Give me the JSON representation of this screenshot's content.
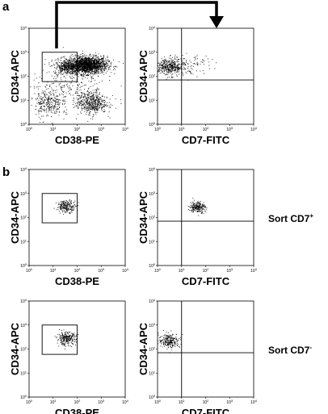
{
  "panel_letters": [
    "a",
    "b"
  ],
  "sort_labels": [
    {
      "text": "Sort CD7",
      "sup": "+"
    },
    {
      "text": "Sort CD7",
      "sup": "-"
    }
  ],
  "colors": {
    "ink": "#000000",
    "background": "#ffffff"
  },
  "chart_data": [
    {
      "type": "scatter",
      "title": "",
      "xlabel": "CD38-PE",
      "ylabel": "CD34-APC",
      "xscale": "log",
      "yscale": "log",
      "xlim": [
        1,
        10000
      ],
      "ylim": [
        1,
        10000
      ],
      "tick_labels": [
        "10^0",
        "10^1",
        "10^2",
        "10^3",
        "10^4"
      ],
      "gate": {
        "x": [
          3.5,
          100
        ],
        "y": [
          60,
          1000
        ]
      },
      "populations": [
        {
          "center": [
            250,
            300
          ],
          "spread": [
            0.42,
            0.18
          ],
          "count": 1700
        },
        {
          "center": [
            40,
            250
          ],
          "spread": [
            0.28,
            0.15
          ],
          "count": 350
        },
        {
          "center": [
            400,
            8
          ],
          "spread": [
            0.3,
            0.22
          ],
          "count": 450
        },
        {
          "center": [
            6,
            8
          ],
          "spread": [
            0.28,
            0.28
          ],
          "count": 250
        },
        {
          "center": [
            60,
            25
          ],
          "spread": [
            0.9,
            0.55
          ],
          "count": 320
        }
      ]
    },
    {
      "type": "scatter",
      "title": "",
      "xlabel": "CD7-FITC",
      "ylabel": "CD34-APC",
      "xscale": "log",
      "yscale": "log",
      "xlim": [
        1,
        10000
      ],
      "ylim": [
        1,
        10000
      ],
      "tick_labels": [
        "10^0",
        "10^1",
        "10^2",
        "10^3",
        "10^4"
      ],
      "quadrant": {
        "x": 10,
        "y": 70
      },
      "populations": [
        {
          "center": [
            3,
            250
          ],
          "spread": [
            0.3,
            0.18
          ],
          "count": 420
        },
        {
          "center": [
            25,
            300
          ],
          "spread": [
            0.4,
            0.2
          ],
          "count": 90
        }
      ]
    },
    {
      "type": "scatter",
      "title": "",
      "xlabel": "CD38-PE",
      "ylabel": "CD34-APC",
      "xscale": "log",
      "yscale": "log",
      "xlim": [
        1,
        10000
      ],
      "ylim": [
        1,
        10000
      ],
      "tick_labels": [
        "10^0",
        "10^1",
        "10^2",
        "10^3",
        "10^4"
      ],
      "gate": {
        "x": [
          3.5,
          100
        ],
        "y": [
          60,
          1000
        ]
      },
      "populations": [
        {
          "center": [
            35,
            300
          ],
          "spread": [
            0.2,
            0.12
          ],
          "count": 220
        }
      ]
    },
    {
      "type": "scatter",
      "title": "",
      "xlabel": "CD7-FITC",
      "ylabel": "CD34-APC",
      "xscale": "log",
      "yscale": "log",
      "xlim": [
        1,
        10000
      ],
      "ylim": [
        1,
        10000
      ],
      "tick_labels": [
        "10^0",
        "10^1",
        "10^2",
        "10^3",
        "10^4"
      ],
      "quadrant": {
        "x": 10,
        "y": 70
      },
      "populations": [
        {
          "center": [
            45,
            280
          ],
          "spread": [
            0.16,
            0.12
          ],
          "count": 230
        }
      ]
    },
    {
      "type": "scatter",
      "title": "",
      "xlabel": "CD38-PE",
      "ylabel": "CD34-APC",
      "xscale": "log",
      "yscale": "log",
      "xlim": [
        1,
        10000
      ],
      "ylim": [
        1,
        10000
      ],
      "tick_labels": [
        "10^0",
        "10^1",
        "10^2",
        "10^3",
        "10^4"
      ],
      "gate": {
        "x": [
          3.5,
          100
        ],
        "y": [
          60,
          1000
        ]
      },
      "populations": [
        {
          "center": [
            35,
            280
          ],
          "spread": [
            0.2,
            0.13
          ],
          "count": 260
        }
      ]
    },
    {
      "type": "scatter",
      "title": "",
      "xlabel": "CD7-FITC",
      "ylabel": "CD34-APC",
      "xscale": "log",
      "yscale": "log",
      "xlim": [
        1,
        10000
      ],
      "ylim": [
        1,
        10000
      ],
      "tick_labels": [
        "10^0",
        "10^1",
        "10^2",
        "10^3",
        "10^4"
      ],
      "quadrant": {
        "x": 10,
        "y": 70
      },
      "populations": [
        {
          "center": [
            3,
            230
          ],
          "spread": [
            0.22,
            0.15
          ],
          "count": 240
        }
      ]
    }
  ]
}
